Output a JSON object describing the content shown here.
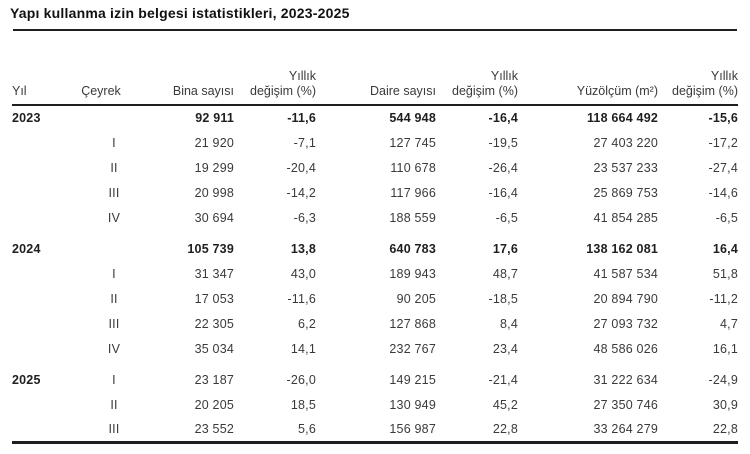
{
  "chart_data": {
    "type": "table",
    "title": "Yapı kullanma izin belgesi istatistikleri, 2023-2025",
    "columns": [
      {
        "label": "Yıl"
      },
      {
        "label": "Çeyrek"
      },
      {
        "label": "Bina sayısı"
      },
      {
        "label_top": "Yıllık",
        "label": "değişim (%)"
      },
      {
        "label": "Daire sayısı"
      },
      {
        "label_top": "Yıllık",
        "label": "değişim (%)"
      },
      {
        "label": "Yüzölçüm (m²)"
      },
      {
        "label_top": "Yıllık",
        "label": "değişim (%)"
      }
    ],
    "rows": [
      {
        "cells": [
          "2023",
          "",
          "92 911",
          "-11,6",
          "544 948",
          "-16,4",
          "118 664 492",
          "-15,6"
        ],
        "bold": true,
        "group_gap": false
      },
      {
        "cells": [
          "",
          "I",
          "21 920",
          "-7,1",
          "127 745",
          "-19,5",
          "27 403 220",
          "-17,2"
        ],
        "bold": false,
        "group_gap": false
      },
      {
        "cells": [
          "",
          "II",
          "19 299",
          "-20,4",
          "110 678",
          "-26,4",
          "23 537 233",
          "-27,4"
        ],
        "bold": false,
        "group_gap": false
      },
      {
        "cells": [
          "",
          "III",
          "20 998",
          "-14,2",
          "117 966",
          "-16,4",
          "25 869 753",
          "-14,6"
        ],
        "bold": false,
        "group_gap": false
      },
      {
        "cells": [
          "",
          "IV",
          "30 694",
          "-6,3",
          "188 559",
          "-6,5",
          "41 854 285",
          "-6,5"
        ],
        "bold": false,
        "group_gap": false
      },
      {
        "cells": [
          "2024",
          "",
          "105 739",
          "13,8",
          "640 783",
          "17,6",
          "138 162 081",
          "16,4"
        ],
        "bold": true,
        "group_gap": true
      },
      {
        "cells": [
          "",
          "I",
          "31 347",
          "43,0",
          "189 943",
          "48,7",
          "41 587 534",
          "51,8"
        ],
        "bold": false,
        "group_gap": false
      },
      {
        "cells": [
          "",
          "II",
          "17 053",
          "-11,6",
          "90 205",
          "-18,5",
          "20 894 790",
          "-11,2"
        ],
        "bold": false,
        "group_gap": false
      },
      {
        "cells": [
          "",
          "III",
          "22 305",
          "6,2",
          "127 868",
          "8,4",
          "27 093 732",
          "4,7"
        ],
        "bold": false,
        "group_gap": false
      },
      {
        "cells": [
          "",
          "IV",
          "35 034",
          "14,1",
          "232 767",
          "23,4",
          "48 586 026",
          "16,1"
        ],
        "bold": false,
        "group_gap": false
      },
      {
        "cells": [
          "2025",
          "I",
          "23 187",
          "-26,0",
          "149 215",
          "-21,4",
          "31 222 634",
          "-24,9"
        ],
        "bold": false,
        "group_gap": true
      },
      {
        "cells": [
          "",
          "II",
          "20 205",
          "18,5",
          "130 949",
          "45,2",
          "27 350 746",
          "30,9"
        ],
        "bold": false,
        "group_gap": false
      },
      {
        "cells": [
          "",
          "III",
          "23 552",
          "5,6",
          "156 987",
          "22,8",
          "33 264 279",
          "22,8"
        ],
        "bold": false,
        "group_gap": false
      }
    ],
    "layout_hints": {
      "grid": "off",
      "year_label_bold": true,
      "total_rows_bold": [
        "2023",
        "2024"
      ]
    }
  },
  "colors": {
    "background": "#ffffff",
    "title_text": "#111111",
    "data_text": "#3a3a3a",
    "bold_text": "#1f1f1f",
    "rule_line": "#1f1f1f"
  }
}
